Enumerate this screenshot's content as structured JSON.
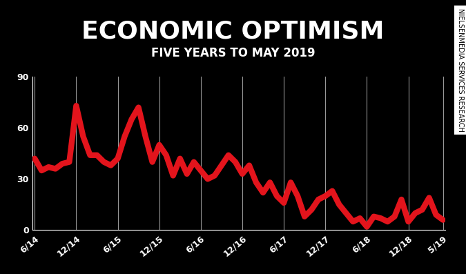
{
  "chart_data": {
    "type": "line",
    "title": "ECONOMIC OPTIMISM",
    "subtitle": "FIVE YEARS TO MAY 2019",
    "source": "NIELSENMEDIA SERVICES RESEARCH",
    "categories": [
      "6/14",
      null,
      null,
      null,
      null,
      null,
      "12/14",
      null,
      null,
      null,
      null,
      null,
      "6/15",
      null,
      null,
      null,
      null,
      null,
      "12/15",
      null,
      null,
      null,
      null,
      null,
      "6/16",
      null,
      null,
      null,
      null,
      null,
      "12/16",
      null,
      null,
      null,
      null,
      null,
      "6/17",
      null,
      null,
      null,
      null,
      null,
      "12/17",
      null,
      null,
      null,
      null,
      null,
      "6/18",
      null,
      null,
      null,
      null,
      null,
      "12/18",
      null,
      null,
      null,
      null,
      "5/19"
    ],
    "values": [
      42,
      35,
      37,
      36,
      39,
      40,
      73,
      55,
      44,
      44,
      40,
      38,
      42,
      55,
      65,
      72,
      55,
      40,
      50,
      44,
      32,
      42,
      33,
      40,
      35,
      30,
      32,
      38,
      44,
      40,
      33,
      38,
      28,
      22,
      28,
      20,
      16,
      28,
      20,
      8,
      12,
      18,
      20,
      23,
      15,
      10,
      5,
      7,
      2,
      8,
      7,
      5,
      8,
      18,
      5,
      10,
      12,
      19,
      9,
      6
    ],
    "color": "#e3141c",
    "ylim": [
      0,
      90
    ],
    "yticks": [
      0,
      30,
      60,
      90
    ],
    "grid": true
  }
}
